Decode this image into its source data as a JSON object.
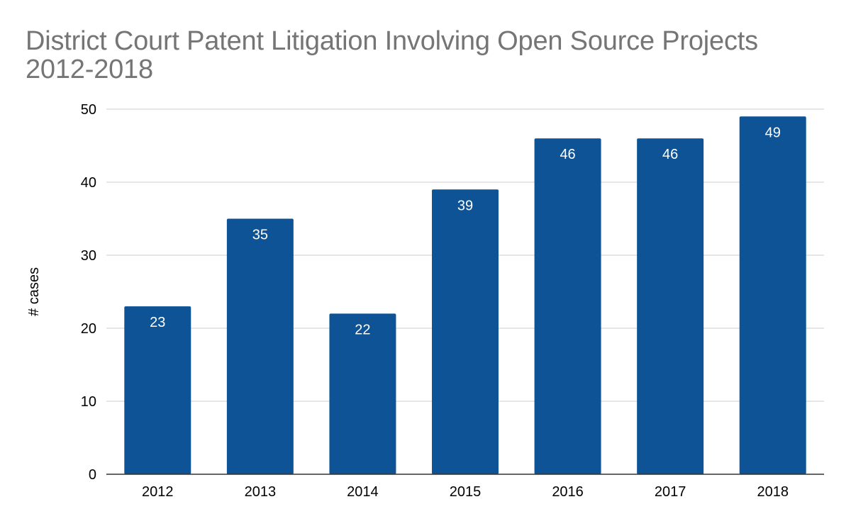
{
  "chart_data": {
    "type": "bar",
    "title_lines": [
      "District Court Patent Litigation Involving Open Source Projects",
      "2012-2018"
    ],
    "xlabel": "",
    "ylabel": "# cases",
    "categories": [
      "2012",
      "2013",
      "2014",
      "2015",
      "2016",
      "2017",
      "2018"
    ],
    "values": [
      23,
      35,
      22,
      39,
      46,
      46,
      49
    ],
    "ylim": [
      0,
      50
    ],
    "yticks": [
      0,
      10,
      20,
      30,
      40,
      50
    ],
    "grid": true,
    "legend": "none",
    "bar_color": "#0e5395",
    "data_label_color": "#ffffff",
    "title_color": "#757575",
    "gridline_color": "#cccccc"
  }
}
